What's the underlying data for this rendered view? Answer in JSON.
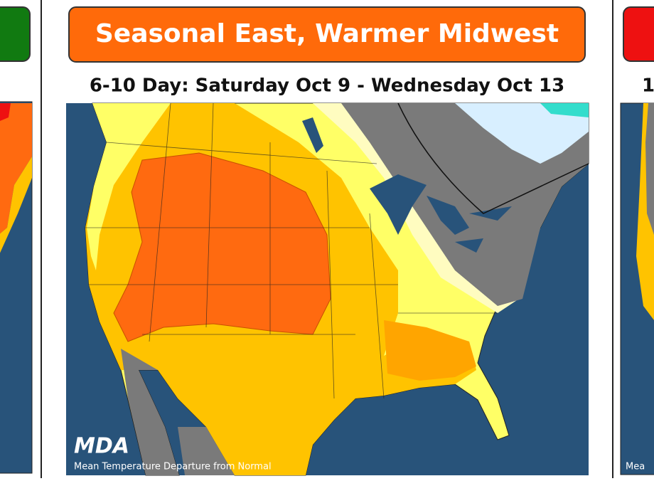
{
  "left_panel": {
    "banner_color": "#117a11"
  },
  "center_panel": {
    "title": "Seasonal East, Warmer Midwest",
    "subtitle": "6-10 Day: Saturday Oct 9 - Wednesday Oct 13",
    "logo": "MDA",
    "caption": "Mean Temperature Departure from Normal",
    "banner_color": "#ff6a0a"
  },
  "right_panel": {
    "subtitle": "1",
    "caption": "Mea",
    "banner_color": "#ee1111"
  }
}
